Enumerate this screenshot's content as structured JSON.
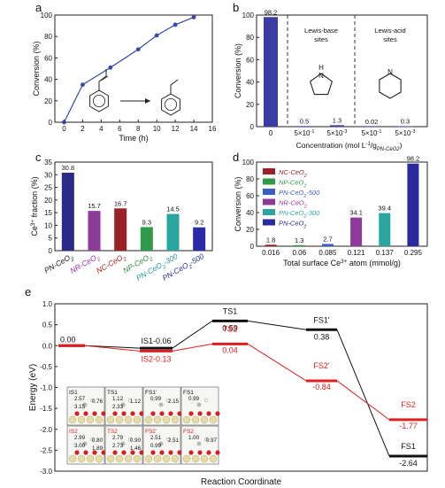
{
  "chart_data": [
    {
      "panel_label": "a",
      "type": "line",
      "xlabel": "Time (h)",
      "ylabel": "Conversion (%)",
      "xlim": [
        -1,
        16
      ],
      "ylim": [
        0,
        100
      ],
      "xticks": [
        0,
        2,
        4,
        6,
        8,
        10,
        12,
        14,
        16
      ],
      "yticks": [
        0,
        20,
        40,
        60,
        80,
        100
      ],
      "x": [
        0,
        2,
        5,
        8,
        10,
        12,
        14
      ],
      "y": [
        0,
        35,
        51,
        68,
        81,
        91,
        98
      ],
      "color": "#3648a8"
    },
    {
      "panel_label": "b",
      "type": "bar",
      "xlabel_main": "Concentration (mol L",
      "xlabel_sup": "-1",
      "xlabel_mid": "/g",
      "xlabel_sub": "PN-CeO2",
      "xlabel_end": ")",
      "ylabel": "Conversion (%)",
      "ylim": [
        0,
        100
      ],
      "yticks": [
        0,
        20,
        40,
        60,
        80,
        100
      ],
      "categories": [
        "0",
        "5×10",
        "5×10",
        "5×10",
        "5×10"
      ],
      "category_exponents": [
        "",
        "-1",
        "-3",
        "-1",
        "-3"
      ],
      "values": [
        98.2,
        0.5,
        1.3,
        0.02,
        0.3
      ],
      "value_labels": [
        "98.2",
        "0.5",
        "1.3",
        "0.02",
        "0.3"
      ],
      "group_labels": [
        [
          "Lewis-base",
          "sites"
        ],
        [
          "Lewis-acid",
          "sites"
        ]
      ],
      "color": "#3a3ea4"
    },
    {
      "panel_label": "c",
      "type": "bar",
      "ylabel_main": "Ce",
      "ylabel_sup": "3+",
      "ylabel_end": " fraction (%)",
      "ylim": [
        0,
        35
      ],
      "yticks": [
        0,
        5,
        10,
        15,
        20,
        25,
        30,
        35
      ],
      "categories": [
        "PN-CeO2",
        "NR-CeO2",
        "NC-CeO2",
        "NP-CeO2",
        "PN-CeO2-300",
        "PN-CeO2-500"
      ],
      "category_colors": [
        "#1a1a1a",
        "#9c2f9c",
        "#b22222",
        "#2e8b3a",
        "#1f9a9a",
        "#2a2aa0"
      ],
      "values": [
        30.8,
        15.7,
        16.7,
        9.3,
        14.5,
        9.2
      ],
      "value_labels": [
        "30.8",
        "15.7",
        "16.7",
        "9.3",
        "14.5",
        "9.2"
      ],
      "colors": [
        "#2a2a88",
        "#8e3a9a",
        "#9a2226",
        "#2f9a4a",
        "#2aa6a0",
        "#2a2aa8"
      ]
    },
    {
      "panel_label": "d",
      "type": "bar",
      "xlabel_main": "Total surface Ce",
      "xlabel_sup": "3+",
      "xlabel_end": " atom (mmol/g)",
      "ylabel": "Conversion (%)",
      "ylim": [
        0,
        100
      ],
      "yticks": [
        0,
        20,
        40,
        60,
        80,
        100
      ],
      "categories": [
        "0.016",
        "0.06",
        "0.085",
        "0.121",
        "0.137",
        "0.295"
      ],
      "values": [
        1.8,
        1.3,
        2.7,
        34.1,
        39.4,
        98.2
      ],
      "value_labels": [
        "1.8",
        "1.3",
        "2.7",
        "34.1",
        "39.4",
        "98.2"
      ],
      "colors": [
        "#9a2226",
        "#2f9a4a",
        "#3a5ec8",
        "#8e3a9a",
        "#2aa6a0",
        "#2a2aa0"
      ],
      "legend": [
        "NC-CeO2",
        "NP-CeO2",
        "PN-CeO2-500",
        "NR-CeO2",
        "PN-CeO2-300",
        "PN-CeO2"
      ],
      "legend_colors": [
        "#9a2226",
        "#2f9a4a",
        "#3a5ec8",
        "#8e3a9a",
        "#2aa6a0",
        "#2a2aa0"
      ],
      "legend_placement": "top-left"
    },
    {
      "panel_label": "e",
      "type": "line",
      "xlabel": "Reaction Coordinate",
      "ylabel": "Energy (eV)",
      "ylim": [
        -3.0,
        1.0
      ],
      "yticks": [
        1.0,
        0.5,
        0.0,
        -0.5,
        -1.0,
        -1.5,
        -2.0,
        -2.5,
        -3.0
      ],
      "ytick_labels": [
        "1.0",
        "0.5",
        "0.0",
        "-0.5",
        "-1.0",
        "-1.5",
        "-2.0",
        "-2.5",
        "-3.0"
      ],
      "series": [
        {
          "color": "#111111",
          "states": [
            "",
            "IS1",
            "TS1",
            "FS1'",
            "FS1"
          ],
          "energies": [
            0.0,
            -0.06,
            0.59,
            0.38,
            -2.64
          ],
          "energy_labels": [
            "0.00",
            "-0.06",
            "0.59",
            "0.38",
            "-2.64"
          ]
        },
        {
          "color": "#e02020",
          "states": [
            "",
            "IS2",
            "TS2",
            "FS2'",
            "FS2"
          ],
          "energies": [
            0.0,
            -0.13,
            0.04,
            -0.84,
            -1.77
          ],
          "energy_labels": [
            "",
            "-0.13",
            "0.04",
            "-0.84",
            "-1.77"
          ]
        }
      ],
      "inset_top": [
        {
          "name": "IS1",
          "distances": [
            "2.57",
            "0.76",
            "3.15"
          ]
        },
        {
          "name": "TS1",
          "distances": [
            "1.12",
            "1.12",
            "2.33"
          ]
        },
        {
          "name": "FS1'",
          "distances": [
            "0.99",
            "2.15"
          ]
        },
        {
          "name": "FS1",
          "distances": [
            "0.99"
          ]
        }
      ],
      "inset_bottom": [
        {
          "name": "IS2",
          "distances": [
            "2.99",
            "0.80",
            "3.00",
            "1.89"
          ]
        },
        {
          "name": "TS2",
          "distances": [
            "2.79",
            "0.90",
            "2.73",
            "1.46"
          ]
        },
        {
          "name": "FS2'",
          "distances": [
            "2.51",
            "2.51",
            "0.99"
          ]
        },
        {
          "name": "FS2",
          "distances": [
            "1.00",
            "0.97"
          ]
        }
      ]
    }
  ]
}
